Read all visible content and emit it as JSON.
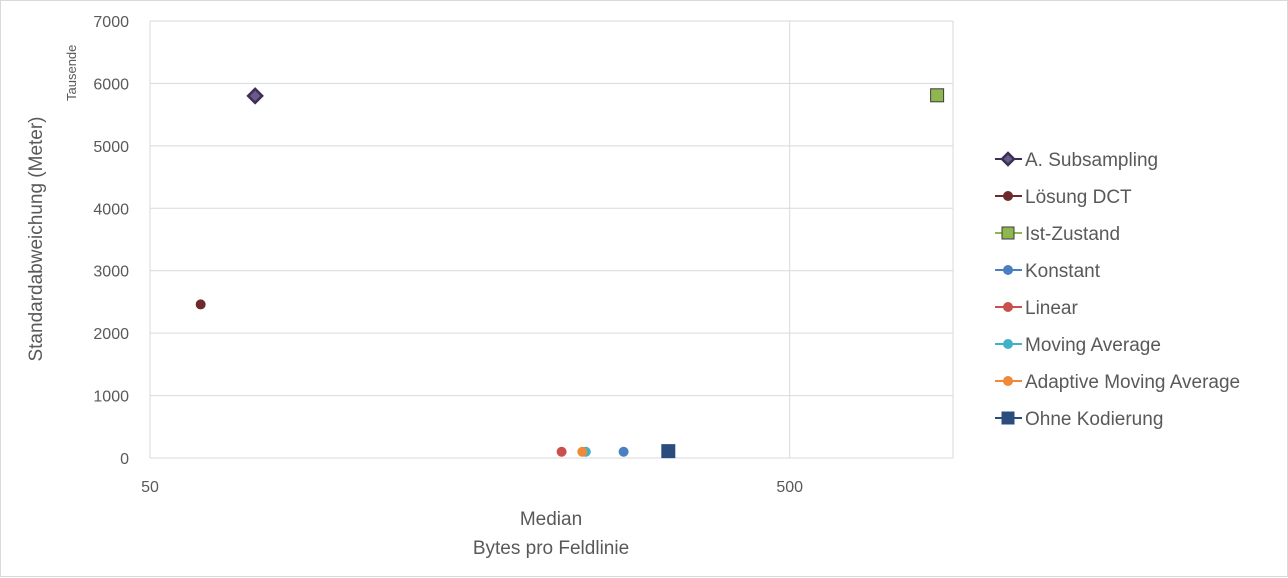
{
  "chart_data": {
    "type": "scatter",
    "title": "",
    "xlabel_line1": "Median",
    "xlabel_line2": "Bytes pro Feldlinie",
    "ylabel": "Standardabweichung (Meter)",
    "y_unit_label": "Tausende",
    "x_scale": "log",
    "xlim": [
      50,
      900
    ],
    "ylim": [
      0,
      7000
    ],
    "x_ticks": [
      {
        "value": 50,
        "label": "50"
      },
      {
        "value": 500,
        "label": "500"
      }
    ],
    "y_ticks": [
      {
        "value": 0,
        "label": "0"
      },
      {
        "value": 1000,
        "label": "1000"
      },
      {
        "value": 2000,
        "label": "2000"
      },
      {
        "value": 3000,
        "label": "3000"
      },
      {
        "value": 4000,
        "label": "4000"
      },
      {
        "value": 5000,
        "label": "5000"
      },
      {
        "value": 6000,
        "label": "6000"
      },
      {
        "value": 7000,
        "label": "7000"
      }
    ],
    "grid": true,
    "legend_position": "right",
    "series": [
      {
        "name": "A. Subsampling",
        "marker": "diamond",
        "color": "#3b2f55",
        "x": 73,
        "y": 5800
      },
      {
        "name": "Lösung DCT",
        "marker": "circle",
        "color": "#6e2a2a",
        "x": 60,
        "y": 2460
      },
      {
        "name": "Ist-Zustand",
        "marker": "square",
        "color": "#8fb74f",
        "x": 850,
        "y": 5810
      },
      {
        "name": "Konstant",
        "marker": "circle",
        "color": "#4a7fc1",
        "x": 275,
        "y": 100
      },
      {
        "name": "Linear",
        "marker": "circle",
        "color": "#c9504c",
        "x": 220,
        "y": 100
      },
      {
        "name": "Moving Average",
        "marker": "circle",
        "color": "#3fb1c8",
        "x": 240,
        "y": 100
      },
      {
        "name": "Adaptive Moving Average",
        "marker": "circle",
        "color": "#ef8a3a",
        "x": 237,
        "y": 100
      },
      {
        "name": "Ohne Kodierung",
        "marker": "square",
        "color": "#2b4d7e",
        "x": 323,
        "y": 110
      }
    ]
  }
}
